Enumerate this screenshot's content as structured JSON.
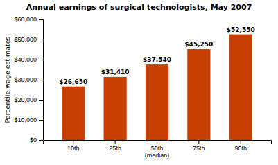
{
  "chart_data": {
    "type": "bar",
    "title": "Annual earnings of surgical technologists, May 2007",
    "y_label": "Percentile wage estimates",
    "categories": [
      "10th",
      "25th",
      "50th\n(median)",
      "75th",
      "90th"
    ],
    "values": [
      26650,
      31410,
      37540,
      45250,
      52550
    ],
    "value_labels": [
      "$26,650",
      "$31,410",
      "$37,540",
      "$45,250",
      "$52,550"
    ],
    "data_labels": true,
    "color": "#C84000",
    "ylim": [
      0,
      60000
    ],
    "yticks": [
      {
        "value": 0,
        "label": "$0"
      },
      {
        "value": 10000,
        "label": "$10,000"
      },
      {
        "value": 20000,
        "label": "$20,000"
      },
      {
        "value": 30000,
        "label": "$30,000"
      },
      {
        "value": 40000,
        "label": "$40,000"
      },
      {
        "value": 50000,
        "label": "$50,000"
      },
      {
        "value": 60000,
        "label": "$60,000"
      }
    ],
    "grid": false
  }
}
